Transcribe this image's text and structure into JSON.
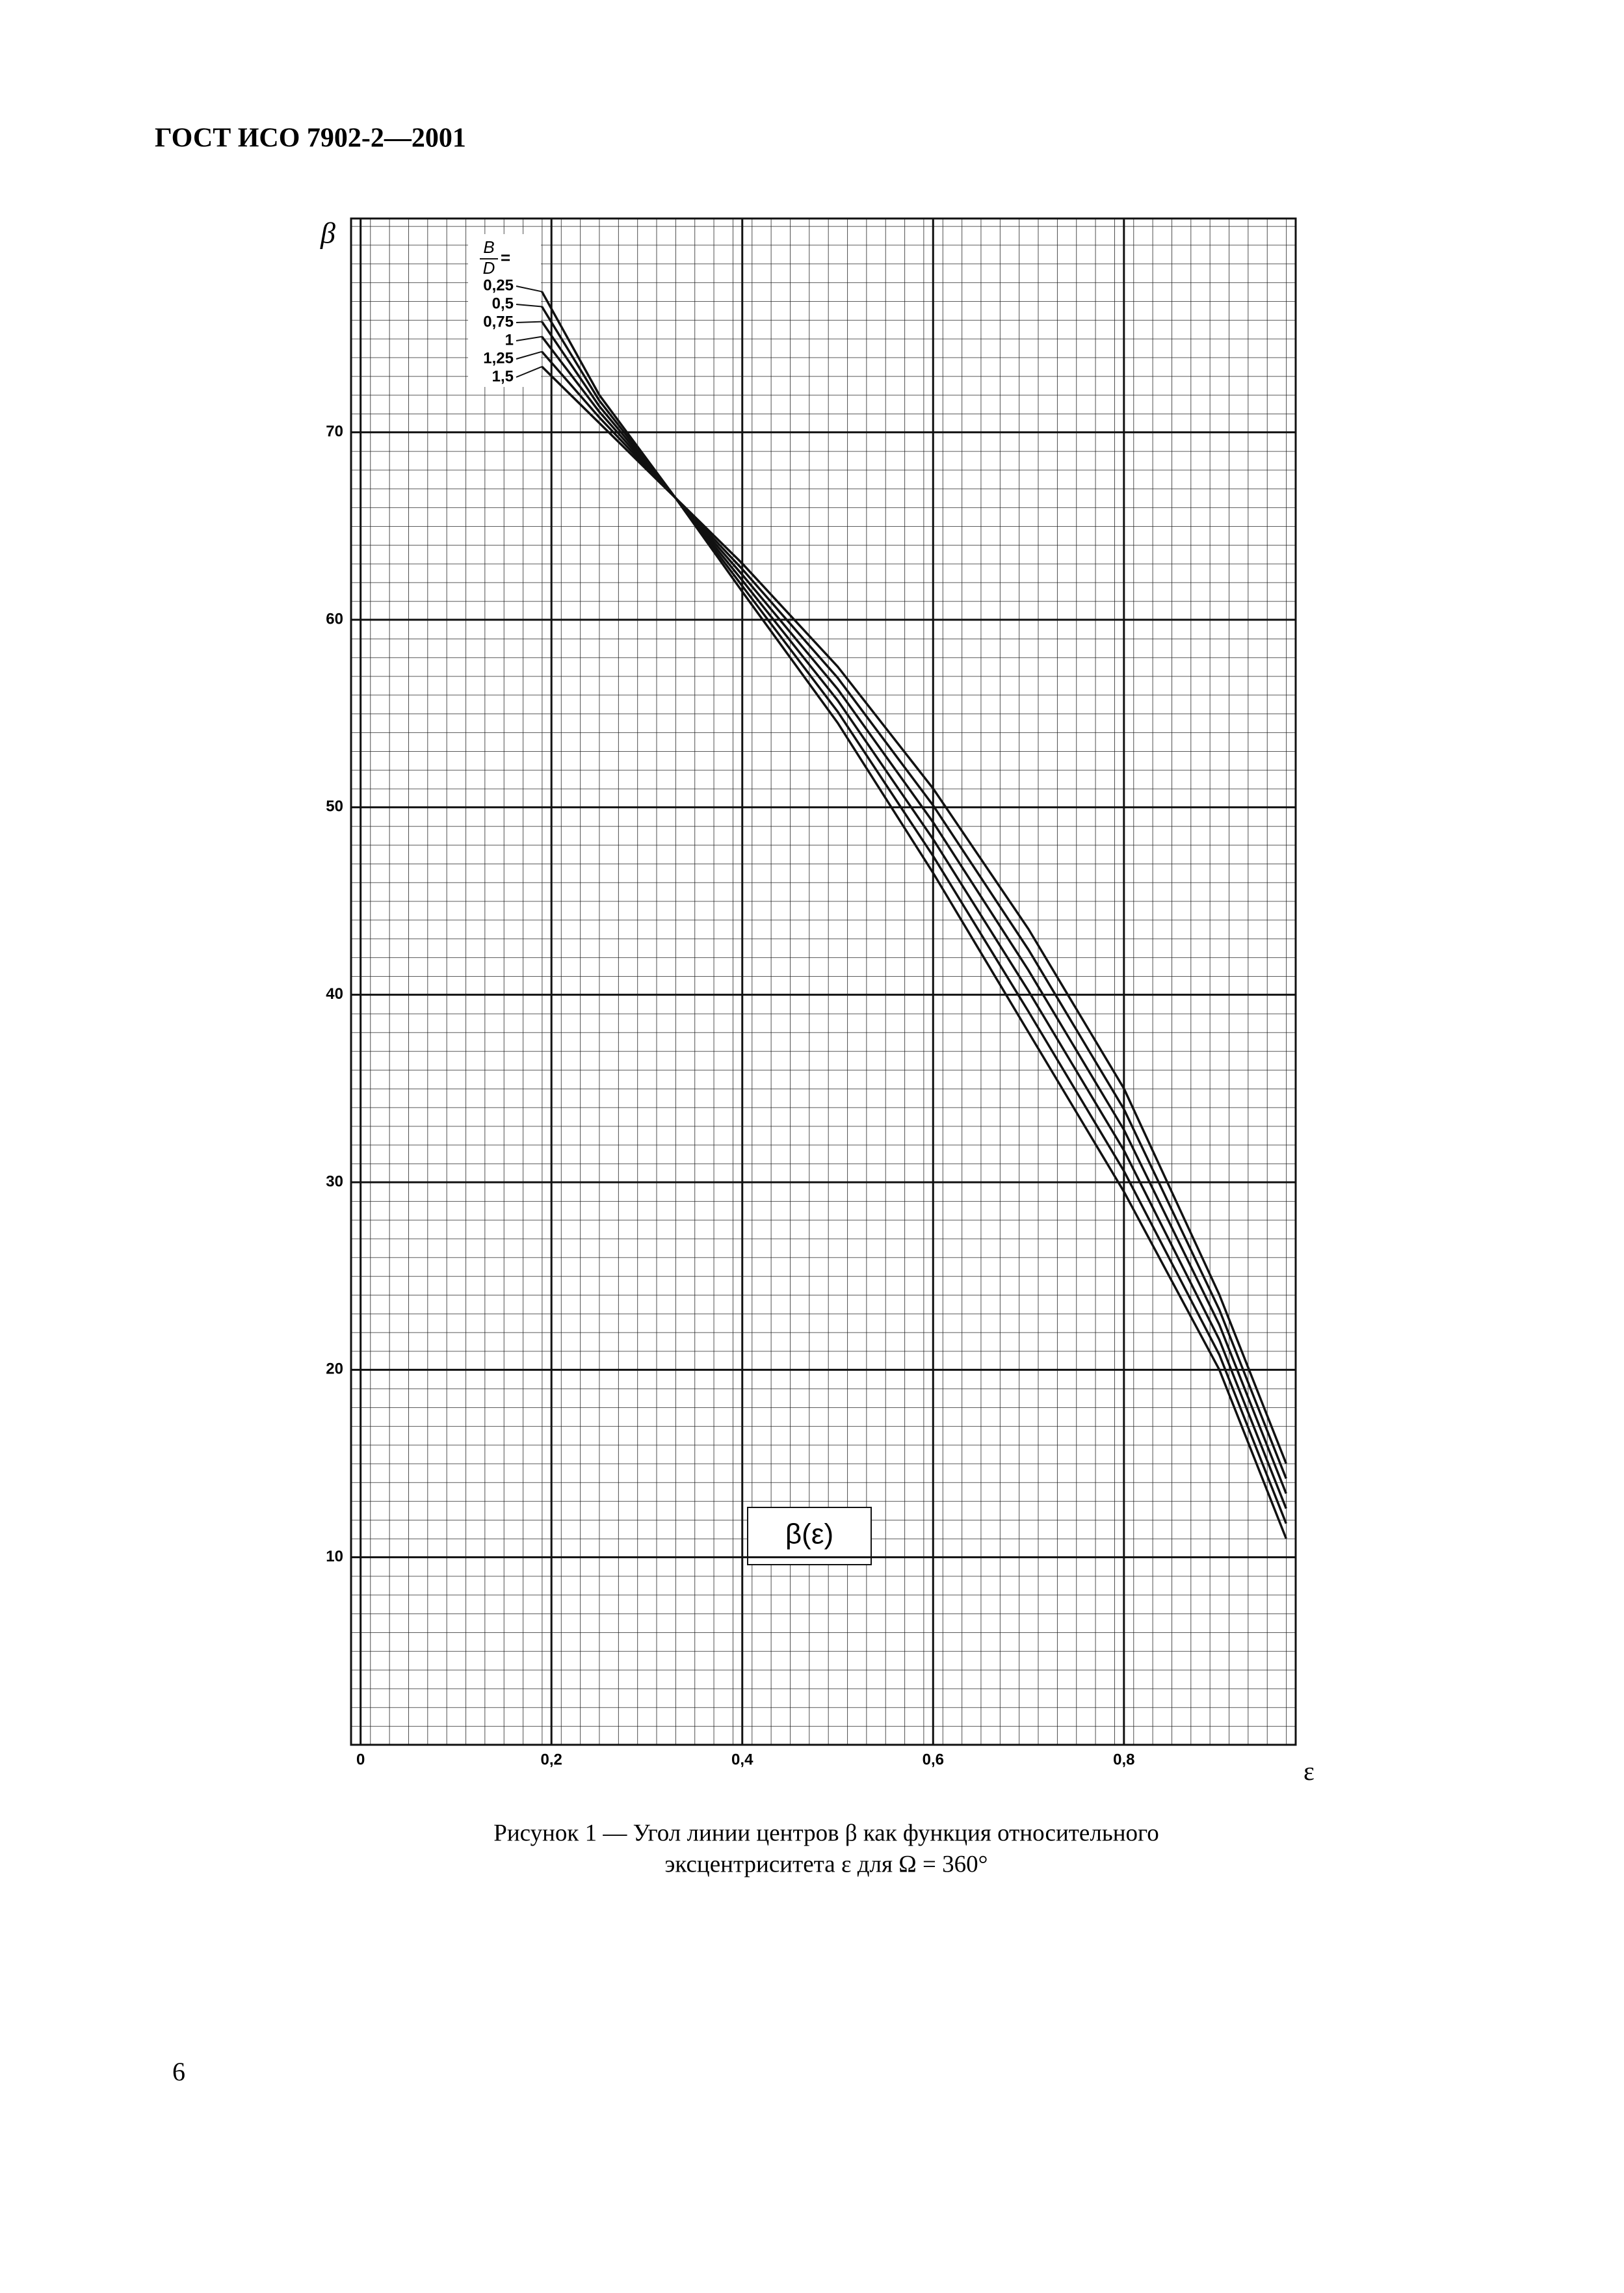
{
  "header": "ГОСТ ИСО 7902-2—2001",
  "chart_data": {
    "type": "line",
    "y_label": "β",
    "x_label": "ε",
    "annotation": "β(ε)",
    "legend_title": {
      "numerator": "B",
      "denominator": "D",
      "sign": "="
    },
    "x": [
      0.19,
      0.25,
      0.33,
      0.4,
      0.5,
      0.6,
      0.7,
      0.8,
      0.9,
      0.97
    ],
    "series": [
      {
        "name": "0,25",
        "color": "#111111",
        "values": [
          77.5,
          72,
          66.5,
          61.5,
          54.5,
          46.5,
          38,
          29.5,
          20,
          11
        ]
      },
      {
        "name": "0,5",
        "color": "#111111",
        "values": [
          76.7,
          71.7,
          66.5,
          61.8,
          55.1,
          47.4,
          39.1,
          30.6,
          20.8,
          11.8
        ]
      },
      {
        "name": "0,75",
        "color": "#111111",
        "values": [
          75.9,
          71.4,
          66.5,
          62.1,
          55.7,
          48.3,
          40.2,
          31.7,
          21.6,
          12.6
        ]
      },
      {
        "name": "1",
        "color": "#111111",
        "values": [
          75.1,
          71.1,
          66.5,
          62.4,
          56.3,
          49.2,
          41.3,
          32.8,
          22.4,
          13.4
        ]
      },
      {
        "name": "1,25",
        "color": "#111111",
        "values": [
          74.3,
          70.8,
          66.5,
          62.7,
          56.9,
          50.1,
          42.4,
          33.9,
          23.2,
          14.2
        ]
      },
      {
        "name": "1,5",
        "color": "#111111",
        "values": [
          73.5,
          70.5,
          66.5,
          63,
          57.5,
          51,
          43.5,
          35,
          24,
          15
        ]
      }
    ],
    "xlim": [
      -0.01,
      0.98
    ],
    "ylim": [
      0,
      81.4
    ],
    "xticks": [
      0,
      {
        "value": 0.2,
        "label": "0,2"
      },
      {
        "value": 0.4,
        "label": "0,4"
      },
      {
        "value": 0.6,
        "label": "0,6"
      },
      {
        "value": 0.8,
        "label": "0,8"
      }
    ],
    "yticks": [
      10,
      20,
      30,
      40,
      50,
      60,
      70
    ],
    "grid": true
  },
  "caption": [
    "Рисунок 1 — Угол линии центров β как функция относительного",
    "эксцентриситета ε для Ω = 360°"
  ],
  "page_number": "6"
}
